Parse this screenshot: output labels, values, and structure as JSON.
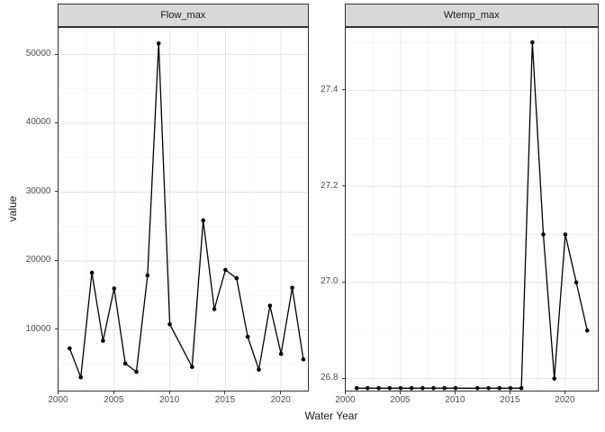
{
  "axes": {
    "x_title": "Water Year",
    "y_title": "value"
  },
  "colors": {
    "strip_fill": "#d9d9d9",
    "strip_border": "#333333",
    "panel_border": "#333333",
    "grid_major": "#e5e5e5",
    "grid_minor": "#f2f2f2",
    "line": "#000000",
    "point": "#000000",
    "tick_label": "#4d4d4d",
    "axis_title": "#1a1a1a"
  },
  "chart_data": [
    {
      "type": "line",
      "facet": "Flow_max",
      "xlabel": "Water Year",
      "ylabel": "value",
      "x": [
        2001,
        2002,
        2003,
        2004,
        2005,
        2006,
        2007,
        2008,
        2009,
        2010,
        2012,
        2013,
        2014,
        2015,
        2016,
        2017,
        2018,
        2019,
        2020,
        2021,
        2022
      ],
      "y": [
        7300,
        3100,
        18300,
        8400,
        16000,
        5100,
        3900,
        17900,
        51600,
        10800,
        4600,
        25900,
        13000,
        18700,
        17500,
        9000,
        4200,
        13500,
        6500,
        16100,
        5700
      ],
      "x_ticks": [
        2000,
        2005,
        2010,
        2015,
        2020
      ],
      "x_tick_labels": [
        "2000",
        "2005",
        "2010",
        "2015",
        "2020"
      ],
      "y_ticks": [
        10000,
        20000,
        30000,
        40000,
        50000
      ],
      "y_tick_labels": [
        "10000",
        "20000",
        "30000",
        "40000",
        "50000"
      ],
      "x_minor": [
        2002.5,
        2007.5,
        2012.5,
        2017.5,
        2022.5
      ],
      "y_minor": [
        5000,
        15000,
        25000,
        35000,
        45000
      ],
      "xlim": [
        2000,
        2022.45
      ],
      "ylim": [
        1100,
        53860
      ],
      "grid": true,
      "legend": "none"
    },
    {
      "type": "line",
      "facet": "Wtemp_max",
      "xlabel": "Water Year",
      "ylabel": "value",
      "x": [
        2001,
        2002,
        2003,
        2004,
        2005,
        2006,
        2007,
        2008,
        2009,
        2010,
        2012,
        2013,
        2014,
        2015,
        2016,
        2017,
        2018,
        2019,
        2020,
        2021,
        2022
      ],
      "y": [
        26.78,
        26.78,
        26.78,
        26.78,
        26.78,
        26.78,
        26.78,
        26.78,
        26.78,
        26.78,
        26.78,
        26.78,
        26.78,
        26.78,
        26.78,
        27.5,
        27.1,
        26.8,
        27.1,
        27.0,
        26.9
      ],
      "x_ticks": [
        2000,
        2005,
        2010,
        2015,
        2020
      ],
      "x_tick_labels": [
        "2000",
        "2005",
        "2010",
        "2015",
        "2020"
      ],
      "y_ticks": [
        26.8,
        27.0,
        27.2,
        27.4
      ],
      "y_tick_labels": [
        "26.8",
        "27.0",
        "27.2",
        "27.4"
      ],
      "x_minor": [
        2002.5,
        2007.5,
        2012.5,
        2017.5,
        2022.5
      ],
      "y_minor": [
        26.9,
        27.1,
        27.3,
        27.5
      ],
      "xlim": [
        2000,
        2023.0
      ],
      "ylim": [
        26.774,
        27.53
      ],
      "grid": true,
      "legend": "none"
    }
  ]
}
